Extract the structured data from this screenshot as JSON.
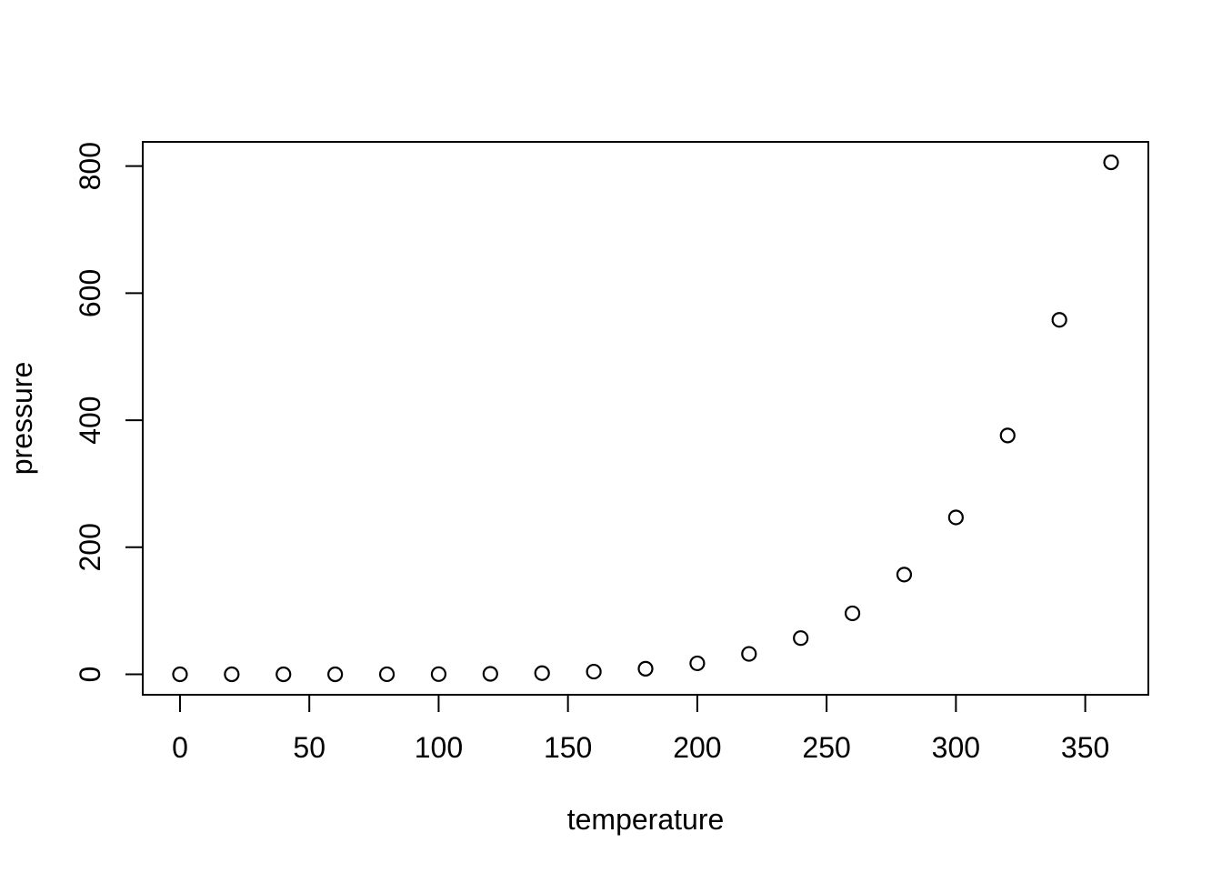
{
  "figure": {
    "background": "#ffffff",
    "foreground": "#000000"
  },
  "chart_data": {
    "type": "scatter",
    "title": "",
    "xlabel": "temperature",
    "ylabel": "pressure",
    "marker": "open-circle",
    "grid": false,
    "legend": null,
    "x": [
      0,
      20,
      40,
      60,
      80,
      100,
      120,
      140,
      160,
      180,
      200,
      220,
      240,
      260,
      280,
      300,
      320,
      340,
      360
    ],
    "y": [
      0.0002,
      0.0012,
      0.006,
      0.03,
      0.09,
      0.27,
      0.75,
      1.85,
      4.2,
      8.8,
      17.3,
      32.1,
      57,
      96,
      157,
      247,
      376,
      558,
      806
    ],
    "xlim": [
      -14.4,
      374.4
    ],
    "ylim": [
      -32.2,
      838.2
    ],
    "xtick_values": [
      0,
      50,
      100,
      150,
      200,
      250,
      300,
      350
    ],
    "xtick_labels": [
      "0",
      "50",
      "100",
      "150",
      "200",
      "250",
      "300",
      "350"
    ],
    "ytick_values": [
      0,
      200,
      400,
      600,
      800
    ],
    "ytick_labels": [
      "0",
      "200",
      "400",
      "600",
      "800"
    ],
    "colors": {
      "points": "#000000",
      "axis": "#000000",
      "text": "#000000",
      "background": "#ffffff"
    }
  }
}
